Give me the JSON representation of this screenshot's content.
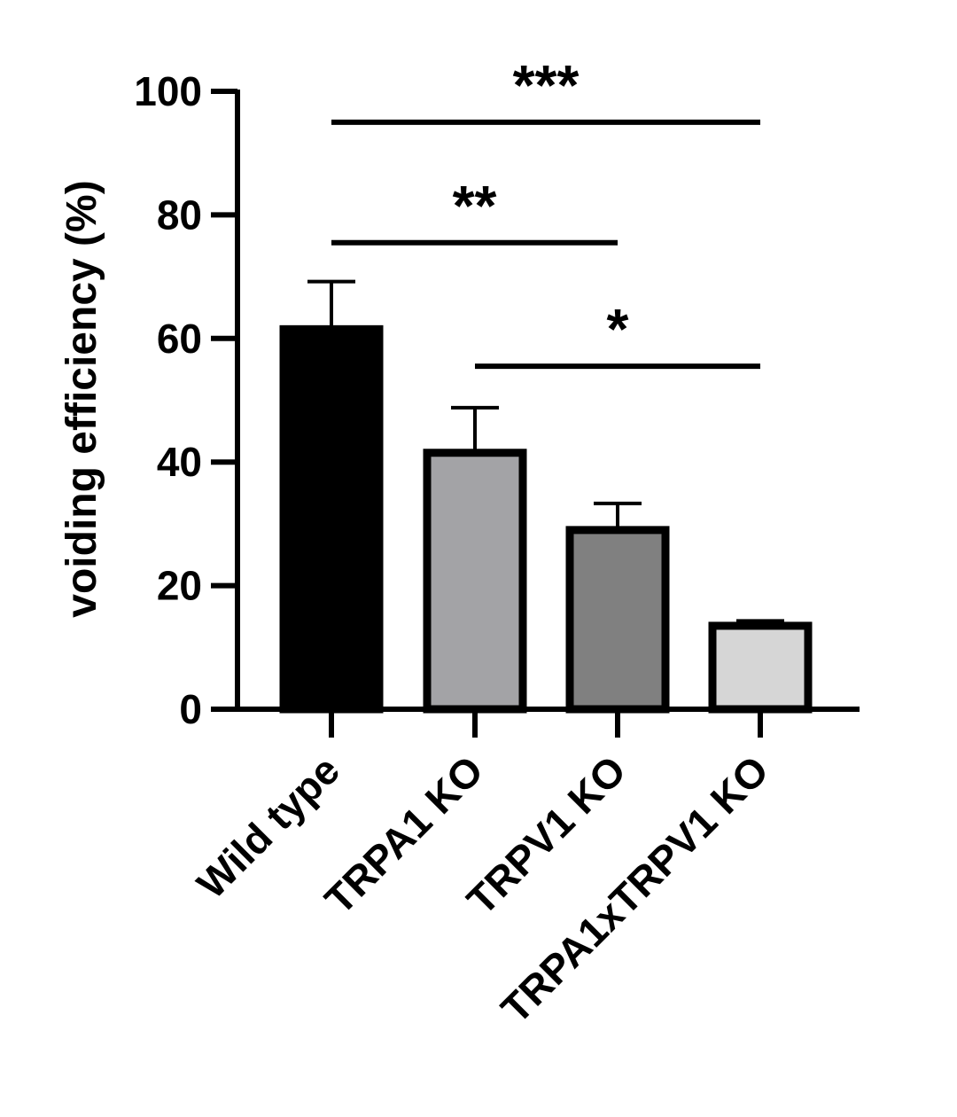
{
  "chart_data": {
    "type": "bar",
    "categories": [
      "Wild type",
      "TRPA1 KO",
      "TRPV1 KO",
      "TRPA1xTRPV1 KO"
    ],
    "values": [
      61.5,
      41.5,
      29,
      13.5
    ],
    "errors": [
      7.7,
      7.3,
      4.3,
      0.8
    ],
    "bar_colors": [
      "#000000",
      "#a3a3a6",
      "#808080",
      "#d6d6d6"
    ],
    "xlabel": "",
    "ylabel": "voiding efficiency (%)",
    "ylim": [
      0,
      100
    ],
    "yticks": [
      0,
      20,
      40,
      60,
      80,
      100
    ],
    "grid": false,
    "significance": [
      {
        "from": 0,
        "to": 3,
        "label": "***",
        "y": 95
      },
      {
        "from": 0,
        "to": 2,
        "label": "**",
        "y": 75.5
      },
      {
        "from": 1,
        "to": 3,
        "label": "*",
        "y": 55.5
      }
    ]
  }
}
